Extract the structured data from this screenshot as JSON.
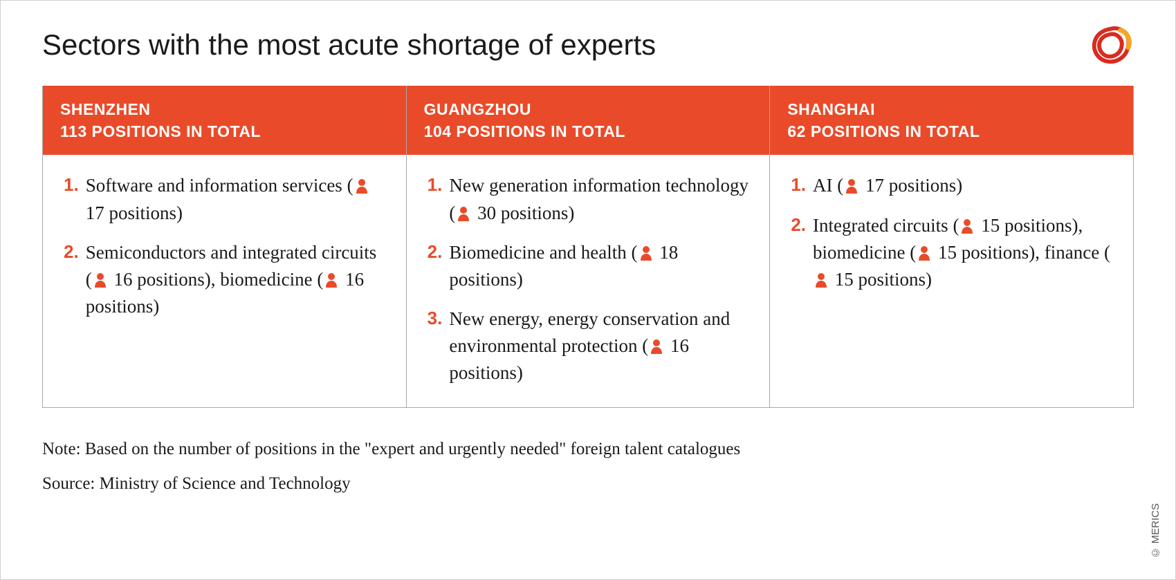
{
  "title": "Sectors with the most acute shortage of experts",
  "accent_color": "#e94b2a",
  "header_bg": "#e94b2a",
  "header_text_color": "#ffffff",
  "border_color": "#a8a8a8",
  "text_color": "#1a1a1a",
  "columns": [
    {
      "city": "SHENZHEN",
      "total_line": "113 POSITIONS IN TOTAL",
      "items": [
        {
          "rank": "1.",
          "html": "Software and information ser­vices ({P} 17 positions)"
        },
        {
          "rank": "2.",
          "html": "Semiconductors and integrated circuits ({P} 16 positions), biomedicine ({P} 16 positions)"
        }
      ]
    },
    {
      "city": "GUANGZHOU",
      "total_line": "104 POSITIONS IN TOTAL",
      "items": [
        {
          "rank": "1.",
          "html": "New generation information technology ({P} 30 positions)"
        },
        {
          "rank": "2.",
          "html": "Biomedicine and health ({P} 18 positions)"
        },
        {
          "rank": "3.",
          "html": "New energy, energy conserva­tion and environmental protection ({P} 16 positions)"
        }
      ]
    },
    {
      "city": "SHANGHAI",
      "total_line": "62 POSITIONS IN TOTAL",
      "items": [
        {
          "rank": "1.",
          "html": "AI ({P} 17 positions)"
        },
        {
          "rank": "2.",
          "html": "Integrated circuits ({P} 15 positions), biomedicine ({P} 15 positions), finance ({P} 15 positions)"
        }
      ]
    }
  ],
  "note": "Note: Based on the number of positions in the \"expert and urgently needed\" foreign talent catalogues",
  "source": "Source: Ministry of Science and Technology",
  "copyright": "© MERICS"
}
